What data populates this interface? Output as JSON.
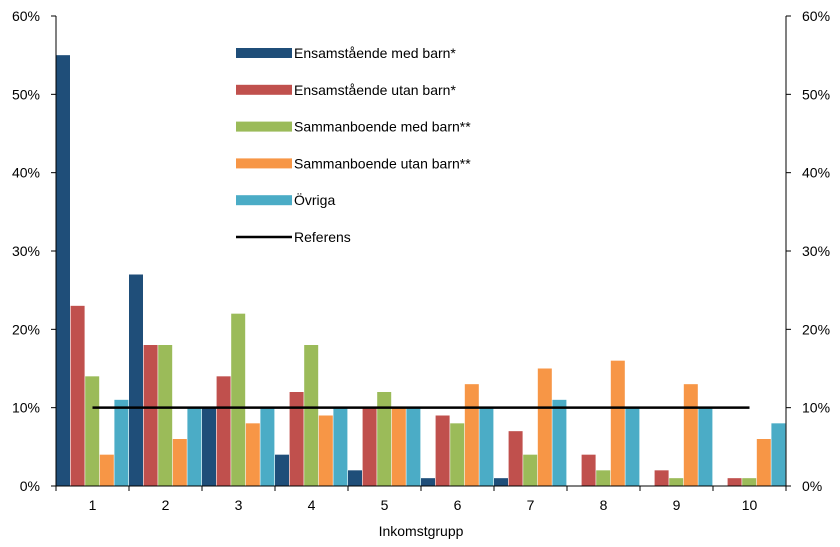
{
  "chart_data": {
    "type": "bar",
    "xlabel": "Inkomstgrupp",
    "ylabel": "",
    "ylim": [
      0,
      60
    ],
    "y_ticks": [
      "0%",
      "10%",
      "20%",
      "30%",
      "40%",
      "50%",
      "60%"
    ],
    "y_tick_values": [
      0,
      10,
      20,
      30,
      40,
      50,
      60
    ],
    "secondary_y_axis": true,
    "grid": false,
    "legend_position": "top-center",
    "categories": [
      "1",
      "2",
      "3",
      "4",
      "5",
      "6",
      "7",
      "8",
      "9",
      "10"
    ],
    "series": [
      {
        "name": "Ensamstående med barn*",
        "type": "bar",
        "color": "#1f4e79",
        "values": [
          55,
          27,
          10,
          4,
          2,
          1,
          1,
          0,
          0,
          0
        ]
      },
      {
        "name": "Ensamstående utan barn*",
        "type": "bar",
        "color": "#c0504d",
        "values": [
          23,
          18,
          14,
          12,
          10,
          9,
          7,
          4,
          2,
          1
        ]
      },
      {
        "name": "Sammanboende med barn**",
        "type": "bar",
        "color": "#9bbb59",
        "values": [
          14,
          18,
          22,
          18,
          12,
          8,
          4,
          2,
          1,
          1
        ]
      },
      {
        "name": "Sammanboende utan barn**",
        "type": "bar",
        "color": "#f79646",
        "values": [
          4,
          6,
          8,
          9,
          10,
          13,
          15,
          16,
          13,
          6
        ]
      },
      {
        "name": "Övriga",
        "type": "bar",
        "color": "#4bacc6",
        "values": [
          11,
          10,
          10,
          10,
          10,
          10,
          11,
          10,
          10,
          8
        ]
      },
      {
        "name": "Referens",
        "type": "line",
        "color": "#000000",
        "values": [
          10,
          10,
          10,
          10,
          10,
          10,
          10,
          10,
          10,
          10
        ]
      }
    ]
  }
}
